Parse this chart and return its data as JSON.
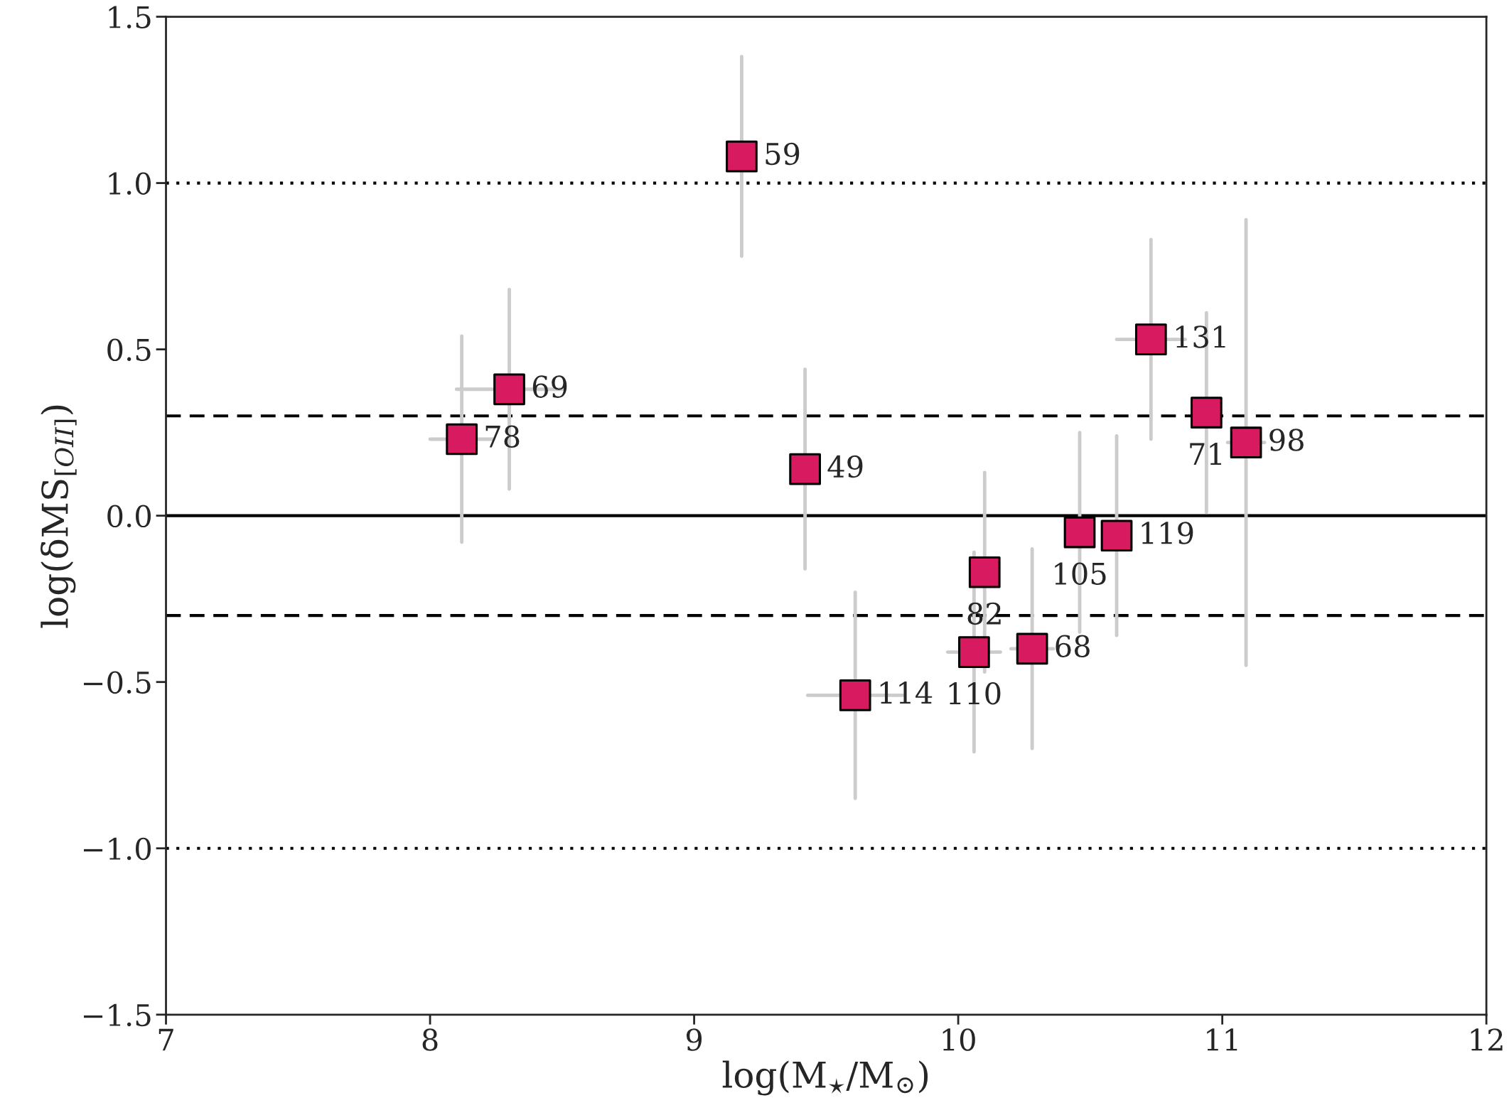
{
  "chart_data": {
    "type": "scatter",
    "xlabel": "log(M$_{⋆}$/M$_{⊙}$)",
    "ylabel": "log(δMS$_{[OII]}$)",
    "xlim": [
      7,
      12
    ],
    "ylim": [
      -1.5,
      1.5
    ],
    "xticks": [
      7,
      8,
      9,
      10,
      11,
      12
    ],
    "yticks": [
      {
        "value": -1.5,
        "label": "−1.5"
      },
      {
        "value": -1.0,
        "label": "−1.0"
      },
      {
        "value": -0.5,
        "label": "−0.5"
      },
      {
        "value": 0.0,
        "label": "0.0"
      },
      {
        "value": 0.5,
        "label": "0.5"
      },
      {
        "value": 1.0,
        "label": "1.0"
      },
      {
        "value": 1.5,
        "label": "1.5"
      }
    ],
    "marker": "square",
    "grid": false,
    "legend": false,
    "series": [
      {
        "color": "#d81b60",
        "x": [
          9.18,
          8.3,
          8.12,
          9.42,
          9.61,
          10.06,
          10.28,
          10.1,
          10.46,
          10.6,
          10.73,
          10.94,
          11.09
        ],
        "values": [
          1.08,
          0.38,
          0.23,
          0.14,
          -0.54,
          -0.41,
          -0.4,
          -0.17,
          -0.05,
          -0.06,
          0.53,
          0.31,
          0.22
        ],
        "errors": [
          0.3,
          0.3,
          0.31,
          0.3,
          0.31,
          0.3,
          0.3,
          0.3,
          0.3,
          0.3,
          0.3,
          0.3,
          0.67
        ],
        "xerrors": [
          null,
          0.2,
          0.12,
          null,
          0.18,
          0.1,
          0.08,
          null,
          null,
          null,
          0.13,
          null,
          0.07
        ]
      }
    ],
    "ref_lines": [
      {
        "axis": "y",
        "value": 0,
        "line_style": "solid",
        "color": "#000000"
      },
      {
        "axis": "y",
        "value": 0.3,
        "line_style": "dashed",
        "color": "#000000"
      },
      {
        "axis": "y",
        "value": -0.3,
        "line_style": "dashed",
        "color": "#000000"
      },
      {
        "axis": "y",
        "value": 1,
        "line_style": "dotted",
        "color": "#000000"
      },
      {
        "axis": "y",
        "value": -1,
        "line_style": "dotted",
        "color": "#000000"
      }
    ],
    "annotations": [
      {
        "text": "59",
        "x": 9.18,
        "y": 1.08
      },
      {
        "text": "69",
        "x": 8.3,
        "y": 0.38
      },
      {
        "text": "78",
        "x": 8.12,
        "y": 0.23
      },
      {
        "text": "49",
        "x": 9.42,
        "y": 0.14
      },
      {
        "text": "114",
        "x": 9.61,
        "y": -0.54
      },
      {
        "text": "110",
        "x": 10.06,
        "y": -0.41
      },
      {
        "text": "68",
        "x": 10.28,
        "y": -0.4
      },
      {
        "text": "82",
        "x": 10.1,
        "y": -0.17
      },
      {
        "text": "105",
        "x": 10.46,
        "y": -0.05
      },
      {
        "text": "119",
        "x": 10.6,
        "y": -0.06
      },
      {
        "text": "131",
        "x": 10.73,
        "y": 0.53
      },
      {
        "text": "71",
        "x": 10.94,
        "y": 0.31
      },
      {
        "text": "98",
        "x": 11.09,
        "y": 0.22
      }
    ]
  }
}
